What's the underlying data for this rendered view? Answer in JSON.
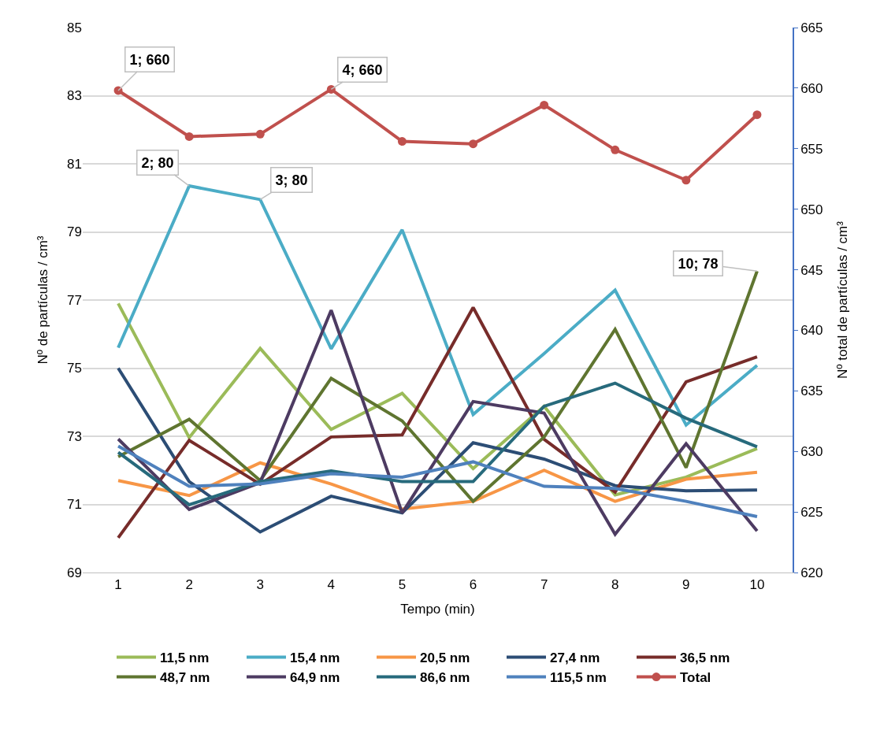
{
  "chart_data": {
    "type": "line",
    "xlabel": "Tempo (min)",
    "ylabel": "Nº de partículas / cm³",
    "y2label": "Nº total de partículas / cm³",
    "categories": [
      "1",
      "2",
      "3",
      "4",
      "5",
      "6",
      "7",
      "8",
      "9",
      "10"
    ],
    "ylim": [
      69,
      85
    ],
    "yticks": [
      69,
      71,
      73,
      75,
      77,
      79,
      81,
      83,
      85
    ],
    "y2lim": [
      620,
      665
    ],
    "y2ticks": [
      620,
      625,
      630,
      635,
      640,
      645,
      650,
      655,
      660,
      665
    ],
    "grid": "y",
    "legend": "bottom",
    "marker": "none",
    "line_style": "solid",
    "series": [
      {
        "name": "11,5 nm",
        "color": "#9bbb59",
        "values": [
          76.9,
          72.96,
          75.58,
          73.2,
          74.26,
          72.05,
          73.88,
          71.28,
          71.8,
          72.64
        ]
      },
      {
        "name": "15,4 nm",
        "color": "#4bacc6",
        "values": [
          75.6,
          80.35,
          79.95,
          75.57,
          79.06,
          73.64,
          75.43,
          77.29,
          73.33,
          75.08
        ]
      },
      {
        "name": "20,5 nm",
        "color": "#f79646",
        "values": [
          71.7,
          71.26,
          72.22,
          71.6,
          70.86,
          71.09,
          72.0,
          71.09,
          71.74,
          71.94
        ]
      },
      {
        "name": "27,4 nm",
        "color": "#2c4d75",
        "values": [
          75.0,
          71.67,
          70.19,
          71.24,
          70.75,
          72.81,
          72.33,
          71.55,
          71.4,
          71.42
        ]
      },
      {
        "name": "36,5 nm",
        "color": "#772c2a",
        "values": [
          70.02,
          72.88,
          71.59,
          72.98,
          73.04,
          76.78,
          72.91,
          71.36,
          74.6,
          75.33
        ]
      },
      {
        "name": "48,7 nm",
        "color": "#5f7530",
        "values": [
          72.4,
          73.5,
          71.7,
          74.7,
          73.45,
          71.09,
          72.98,
          76.14,
          72.08,
          77.85
        ]
      },
      {
        "name": "64,9 nm",
        "color": "#4d3b62",
        "values": [
          72.92,
          70.85,
          71.64,
          76.7,
          70.75,
          74.02,
          73.68,
          70.12,
          72.78,
          70.22
        ]
      },
      {
        "name": "86,6 nm",
        "color": "#276a7c",
        "values": [
          72.53,
          70.99,
          71.67,
          71.98,
          71.67,
          71.67,
          73.88,
          74.56,
          73.53,
          72.69
        ]
      },
      {
        "name": "115,5 nm",
        "color": "#4f81bd",
        "values": [
          72.71,
          71.53,
          71.6,
          71.9,
          71.8,
          72.25,
          71.53,
          71.47,
          71.09,
          70.64
        ]
      },
      {
        "name": "Total",
        "color": "#c0504d",
        "axis": "y2",
        "marker": "circle",
        "values": [
          659.8,
          656.0,
          656.2,
          659.9,
          655.6,
          655.4,
          658.6,
          654.9,
          652.4,
          657.8
        ]
      }
    ],
    "annotations": [
      {
        "text": "1; 660",
        "x": "1",
        "y": 83.15
      },
      {
        "text": "2; 80",
        "x": "2",
        "y": 80.35
      },
      {
        "text": "3; 80",
        "x": "3",
        "y": 79.95
      },
      {
        "text": "4; 660",
        "x": "4",
        "y": 83.19
      },
      {
        "text": "10; 78",
        "x": "10",
        "y": 77.85
      }
    ]
  }
}
